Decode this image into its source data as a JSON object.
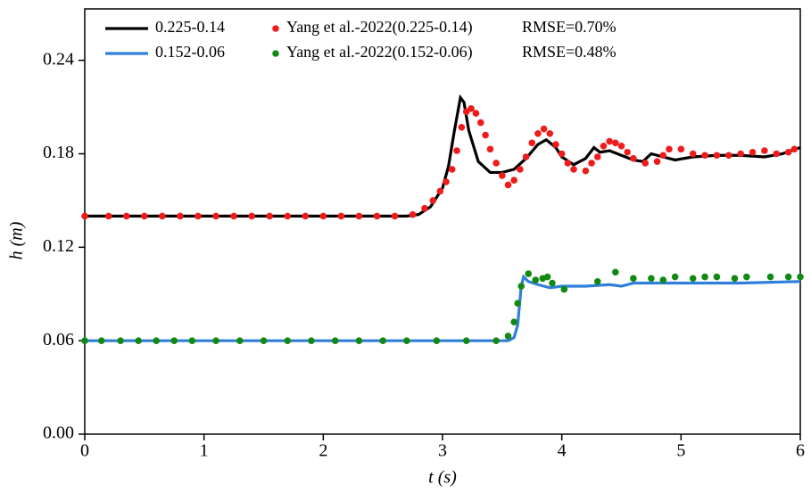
{
  "chart_data": {
    "type": "line",
    "xlabel": "t (s)",
    "ylabel": "h (m)",
    "xlim": [
      0,
      6
    ],
    "xticks": [
      0,
      1,
      2,
      3,
      4,
      5,
      6
    ],
    "ylim": [
      0,
      0.273
    ],
    "yticks": [
      {
        "value": 0,
        "label": "0.00"
      },
      0.06,
      0.12,
      0.18,
      0.24
    ],
    "annotations": [
      "RMSE=0.70%",
      "RMSE=0.48%"
    ],
    "series": [
      {
        "name": "0.225-0.14",
        "color": "#000000",
        "mode": "line",
        "x": [
          0,
          2.7,
          2.8,
          2.9,
          3.0,
          3.05,
          3.1,
          3.15,
          3.18,
          3.22,
          3.3,
          3.4,
          3.5,
          3.6,
          3.7,
          3.8,
          3.87,
          3.95,
          4.0,
          4.1,
          4.2,
          4.27,
          4.32,
          4.4,
          4.5,
          4.6,
          4.68,
          4.75,
          4.85,
          4.95,
          5.1,
          5.3,
          5.5,
          5.7,
          5.85,
          6.0
        ],
        "values": [
          0.14,
          0.14,
          0.141,
          0.146,
          0.158,
          0.172,
          0.195,
          0.216,
          0.213,
          0.195,
          0.175,
          0.168,
          0.168,
          0.17,
          0.177,
          0.186,
          0.189,
          0.184,
          0.178,
          0.173,
          0.177,
          0.184,
          0.181,
          0.182,
          0.179,
          0.176,
          0.175,
          0.18,
          0.178,
          0.176,
          0.178,
          0.179,
          0.179,
          0.178,
          0.18,
          0.184
        ]
      },
      {
        "name": "0.152-0.06",
        "color": "#2f7fd8",
        "mode": "line",
        "x": [
          0,
          3.55,
          3.6,
          3.63,
          3.66,
          3.68,
          3.72,
          3.8,
          3.9,
          4.0,
          4.2,
          4.4,
          4.5,
          4.6,
          4.8,
          5.0,
          5.5,
          6.0
        ],
        "values": [
          0.06,
          0.06,
          0.062,
          0.07,
          0.095,
          0.101,
          0.098,
          0.096,
          0.094,
          0.095,
          0.095,
          0.096,
          0.095,
          0.097,
          0.097,
          0.097,
          0.097,
          0.098
        ]
      },
      {
        "name": "Yang et al.-2022(0.225-0.14)",
        "color": "#f01c1c",
        "mode": "markers",
        "x": [
          0,
          0.2,
          0.35,
          0.5,
          0.65,
          0.8,
          0.95,
          1.1,
          1.25,
          1.4,
          1.55,
          1.7,
          1.85,
          2.0,
          2.15,
          2.3,
          2.45,
          2.6,
          2.75,
          2.85,
          2.92,
          2.98,
          3.03,
          3.08,
          3.12,
          3.16,
          3.2,
          3.24,
          3.28,
          3.32,
          3.36,
          3.4,
          3.45,
          3.5,
          3.55,
          3.6,
          3.65,
          3.7,
          3.75,
          3.8,
          3.85,
          3.9,
          3.95,
          4.0,
          4.05,
          4.1,
          4.2,
          4.25,
          4.3,
          4.35,
          4.4,
          4.45,
          4.5,
          4.55,
          4.6,
          4.7,
          4.8,
          4.85,
          4.9,
          5.0,
          5.1,
          5.2,
          5.3,
          5.4,
          5.5,
          5.6,
          5.7,
          5.8,
          5.9,
          5.95
        ],
        "values": [
          0.14,
          0.14,
          0.14,
          0.14,
          0.14,
          0.14,
          0.14,
          0.14,
          0.14,
          0.14,
          0.14,
          0.14,
          0.14,
          0.14,
          0.14,
          0.14,
          0.14,
          0.14,
          0.141,
          0.145,
          0.15,
          0.156,
          0.162,
          0.17,
          0.182,
          0.197,
          0.207,
          0.209,
          0.206,
          0.2,
          0.192,
          0.183,
          0.174,
          0.166,
          0.16,
          0.163,
          0.17,
          0.178,
          0.187,
          0.193,
          0.196,
          0.193,
          0.186,
          0.18,
          0.174,
          0.17,
          0.169,
          0.174,
          0.178,
          0.185,
          0.188,
          0.187,
          0.185,
          0.181,
          0.177,
          0.174,
          0.175,
          0.179,
          0.183,
          0.183,
          0.18,
          0.179,
          0.179,
          0.179,
          0.18,
          0.181,
          0.182,
          0.18,
          0.181,
          0.183
        ]
      },
      {
        "name": "Yang et al.-2022(0.152-0.06)",
        "color": "#128a12",
        "mode": "markers",
        "x": [
          0,
          0.14,
          0.3,
          0.45,
          0.6,
          0.75,
          0.9,
          1.1,
          1.3,
          1.5,
          1.7,
          1.9,
          2.1,
          2.3,
          2.5,
          2.7,
          2.95,
          3.2,
          3.45,
          3.55,
          3.6,
          3.63,
          3.66,
          3.72,
          3.78,
          3.84,
          3.88,
          3.92,
          4.02,
          4.3,
          4.45,
          4.6,
          4.75,
          4.85,
          4.95,
          5.1,
          5.2,
          5.3,
          5.45,
          5.55,
          5.75,
          5.9,
          6.0
        ],
        "values": [
          0.06,
          0.06,
          0.06,
          0.06,
          0.06,
          0.06,
          0.06,
          0.06,
          0.06,
          0.06,
          0.06,
          0.06,
          0.06,
          0.06,
          0.06,
          0.06,
          0.06,
          0.06,
          0.06,
          0.063,
          0.072,
          0.084,
          0.095,
          0.103,
          0.099,
          0.1,
          0.101,
          0.097,
          0.093,
          0.098,
          0.104,
          0.1,
          0.1,
          0.099,
          0.101,
          0.1,
          0.101,
          0.101,
          0.1,
          0.101,
          0.101,
          0.101,
          0.101
        ]
      }
    ]
  }
}
